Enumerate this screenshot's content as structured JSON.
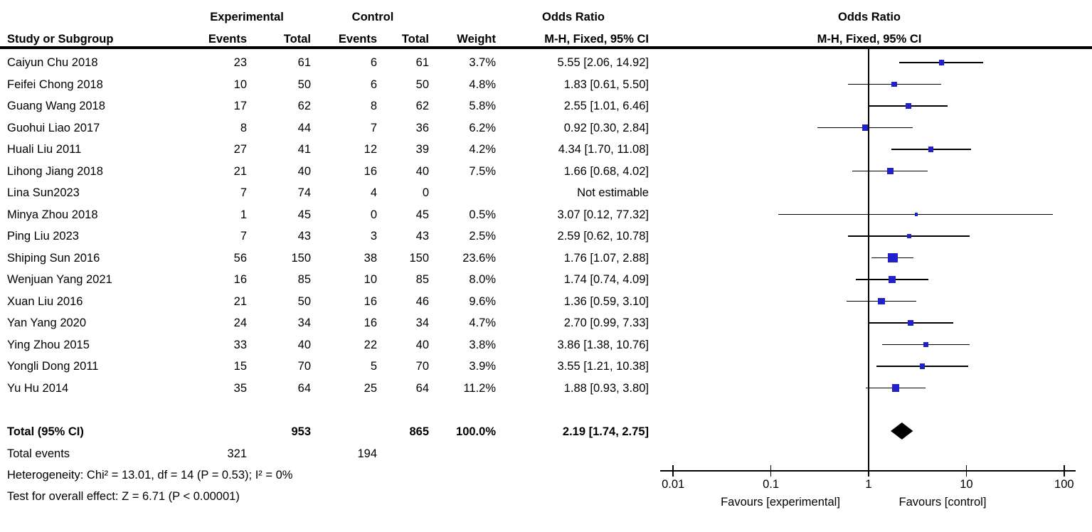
{
  "figure": {
    "group_headers": {
      "experimental": "Experimental",
      "control": "Control",
      "odds_ratio_table": "Odds Ratio",
      "odds_ratio_plot": "Odds Ratio"
    },
    "column_headers": {
      "study": "Study or Subgroup",
      "exp_events": "Events",
      "exp_total": "Total",
      "ctrl_events": "Events",
      "ctrl_total": "Total",
      "weight": "Weight",
      "mh_fixed": "M-H, Fixed, 95% CI",
      "mh_fixed_plot": "M-H, Fixed, 95% CI"
    },
    "totals_row": {
      "label": "Total (95% CI)",
      "exp_total": "953",
      "ctrl_total": "865",
      "weight": "100.0%",
      "or_text": "2.19 [1.74, 2.75]"
    },
    "total_events_row": {
      "label": "Total events",
      "exp_events": "321",
      "ctrl_events": "194"
    },
    "footer": {
      "heterogeneity": "Heterogeneity: Chi² = 13.01, df = 14 (P = 0.53); I² = 0%",
      "overall_effect": "Test for overall effect: Z = 6.71 (P < 0.00001)"
    },
    "favours_left": "Favours [experimental]",
    "favours_right": "Favours [control]"
  },
  "chart_data": {
    "type": "forest",
    "title": "Odds Ratio",
    "effect_measure": "M-H, Fixed, 95% CI",
    "x_scale": "log10",
    "x_ticks": [
      "0.01",
      "0.1",
      "1",
      "10",
      "100"
    ],
    "x_tick_values": [
      0.01,
      0.1,
      1,
      10,
      100
    ],
    "xlim": [
      0.01,
      100
    ],
    "null_line": 1,
    "colors": {
      "square": "#2121cc",
      "diamond": "#000000",
      "line": "#000000"
    },
    "studies": [
      {
        "name": "Caiyun Chu 2018",
        "exp_events": "23",
        "exp_total": "61",
        "ctrl_events": "6",
        "ctrl_total": "61",
        "weight_text": "3.7%",
        "weight": 3.7,
        "or": 5.55,
        "ci_low": 2.06,
        "ci_high": 14.92,
        "or_text": "5.55 [2.06, 14.92]",
        "estimable": true
      },
      {
        "name": "Feifei Chong 2018",
        "exp_events": "10",
        "exp_total": "50",
        "ctrl_events": "6",
        "ctrl_total": "50",
        "weight_text": "4.8%",
        "weight": 4.8,
        "or": 1.83,
        "ci_low": 0.61,
        "ci_high": 5.5,
        "or_text": "1.83 [0.61, 5.50]",
        "estimable": true
      },
      {
        "name": "Guang Wang 2018",
        "exp_events": "17",
        "exp_total": "62",
        "ctrl_events": "8",
        "ctrl_total": "62",
        "weight_text": "5.8%",
        "weight": 5.8,
        "or": 2.55,
        "ci_low": 1.01,
        "ci_high": 6.46,
        "or_text": "2.55 [1.01, 6.46]",
        "estimable": true
      },
      {
        "name": "Guohui Liao 2017",
        "exp_events": "8",
        "exp_total": "44",
        "ctrl_events": "7",
        "ctrl_total": "36",
        "weight_text": "6.2%",
        "weight": 6.2,
        "or": 0.92,
        "ci_low": 0.3,
        "ci_high": 2.84,
        "or_text": "0.92 [0.30, 2.84]",
        "estimable": true
      },
      {
        "name": "Huali Liu 2011",
        "exp_events": "27",
        "exp_total": "41",
        "ctrl_events": "12",
        "ctrl_total": "39",
        "weight_text": "4.2%",
        "weight": 4.2,
        "or": 4.34,
        "ci_low": 1.7,
        "ci_high": 11.08,
        "or_text": "4.34 [1.70, 11.08]",
        "estimable": true
      },
      {
        "name": "Lihong Jiang  2018",
        "exp_events": "21",
        "exp_total": "40",
        "ctrl_events": "16",
        "ctrl_total": "40",
        "weight_text": "7.5%",
        "weight": 7.5,
        "or": 1.66,
        "ci_low": 0.68,
        "ci_high": 4.02,
        "or_text": "1.66 [0.68, 4.02]",
        "estimable": true
      },
      {
        "name": "Lina Sun2023",
        "exp_events": "7",
        "exp_total": "74",
        "ctrl_events": "4",
        "ctrl_total": "0",
        "weight_text": "",
        "weight": 0,
        "or": null,
        "ci_low": null,
        "ci_high": null,
        "or_text": "Not estimable",
        "estimable": false
      },
      {
        "name": "Minya Zhou 2018",
        "exp_events": "1",
        "exp_total": "45",
        "ctrl_events": "0",
        "ctrl_total": "45",
        "weight_text": "0.5%",
        "weight": 0.5,
        "or": 3.07,
        "ci_low": 0.12,
        "ci_high": 77.32,
        "or_text": "3.07 [0.12, 77.32]",
        "estimable": true
      },
      {
        "name": "Ping Liu 2023",
        "exp_events": "7",
        "exp_total": "43",
        "ctrl_events": "3",
        "ctrl_total": "43",
        "weight_text": "2.5%",
        "weight": 2.5,
        "or": 2.59,
        "ci_low": 0.62,
        "ci_high": 10.78,
        "or_text": "2.59 [0.62, 10.78]",
        "estimable": true
      },
      {
        "name": "Shiping Sun 2016",
        "exp_events": "56",
        "exp_total": "150",
        "ctrl_events": "38",
        "ctrl_total": "150",
        "weight_text": "23.6%",
        "weight": 23.6,
        "or": 1.76,
        "ci_low": 1.07,
        "ci_high": 2.88,
        "or_text": "1.76 [1.07, 2.88]",
        "estimable": true
      },
      {
        "name": "Wenjuan Yang 2021",
        "exp_events": "16",
        "exp_total": "85",
        "ctrl_events": "10",
        "ctrl_total": "85",
        "weight_text": "8.0%",
        "weight": 8.0,
        "or": 1.74,
        "ci_low": 0.74,
        "ci_high": 4.09,
        "or_text": "1.74 [0.74, 4.09]",
        "estimable": true
      },
      {
        "name": "Xuan Liu 2016",
        "exp_events": "21",
        "exp_total": "50",
        "ctrl_events": "16",
        "ctrl_total": "46",
        "weight_text": "9.6%",
        "weight": 9.6,
        "or": 1.36,
        "ci_low": 0.59,
        "ci_high": 3.1,
        "or_text": "1.36 [0.59, 3.10]",
        "estimable": true
      },
      {
        "name": "Yan Yang 2020",
        "exp_events": "24",
        "exp_total": "34",
        "ctrl_events": "16",
        "ctrl_total": "34",
        "weight_text": "4.7%",
        "weight": 4.7,
        "or": 2.7,
        "ci_low": 0.99,
        "ci_high": 7.33,
        "or_text": "2.70 [0.99, 7.33]",
        "estimable": true
      },
      {
        "name": "Ying Zhou 2015",
        "exp_events": "33",
        "exp_total": "40",
        "ctrl_events": "22",
        "ctrl_total": "40",
        "weight_text": "3.8%",
        "weight": 3.8,
        "or": 3.86,
        "ci_low": 1.38,
        "ci_high": 10.76,
        "or_text": "3.86 [1.38, 10.76]",
        "estimable": true
      },
      {
        "name": "Yongli Dong 2011",
        "exp_events": "15",
        "exp_total": "70",
        "ctrl_events": "5",
        "ctrl_total": "70",
        "weight_text": "3.9%",
        "weight": 3.9,
        "or": 3.55,
        "ci_low": 1.21,
        "ci_high": 10.38,
        "or_text": "3.55 [1.21, 10.38]",
        "estimable": true
      },
      {
        "name": "Yu Hu 2014",
        "exp_events": "35",
        "exp_total": "64",
        "ctrl_events": "25",
        "ctrl_total": "64",
        "weight_text": "11.2%",
        "weight": 11.2,
        "or": 1.88,
        "ci_low": 0.93,
        "ci_high": 3.8,
        "or_text": "1.88 [0.93, 3.80]",
        "estimable": true
      }
    ],
    "total": {
      "or": 2.19,
      "ci_low": 1.74,
      "ci_high": 2.75,
      "or_text": "2.19 [1.74, 2.75]"
    }
  }
}
